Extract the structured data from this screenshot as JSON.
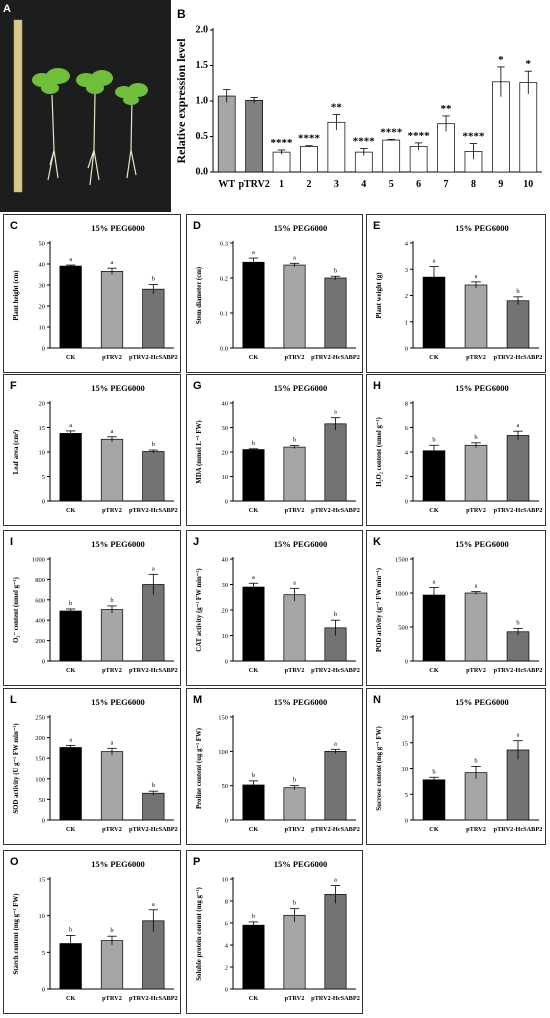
{
  "photo": {
    "label": "A"
  },
  "chart_data": [
    {
      "id": "B",
      "label": "B",
      "type": "bar",
      "ylabel": "Relative expression level",
      "categories": [
        "WT",
        "pTRV2",
        "1",
        "2",
        "3",
        "4",
        "5",
        "6",
        "7",
        "8",
        "9",
        "10"
      ],
      "values": [
        1.07,
        1.01,
        0.28,
        0.36,
        0.7,
        0.28,
        0.45,
        0.36,
        0.68,
        0.29,
        1.27,
        1.26
      ],
      "errors": [
        0.09,
        0.04,
        0.03,
        0.01,
        0.11,
        0.05,
        0.01,
        0.05,
        0.11,
        0.11,
        0.21,
        0.16
      ],
      "sig": [
        "",
        "",
        "****",
        "****",
        "**",
        "****",
        "****",
        "****",
        "**",
        "****",
        "*",
        "*"
      ],
      "colors": [
        "#a6a6a6",
        "#808080",
        "#ffffff",
        "#ffffff",
        "#ffffff",
        "#ffffff",
        "#ffffff",
        "#ffffff",
        "#ffffff",
        "#ffffff",
        "#ffffff",
        "#ffffff"
      ],
      "ylim": [
        0,
        2.0
      ],
      "yticks": [
        "0.0",
        "0.5",
        "1.0",
        "1.5",
        "2.0"
      ]
    },
    {
      "id": "C",
      "label": "C",
      "type": "bar",
      "title": "15% PEG6000",
      "ylabel": "Plant height (cm)",
      "categories": [
        "CK",
        "pTRV2",
        "pTRV2-HcSABP2"
      ],
      "values": [
        39,
        36.5,
        28
      ],
      "errors": [
        0.5,
        1.5,
        2.2
      ],
      "sig": [
        "a",
        "a",
        "b"
      ],
      "colors": [
        "#000000",
        "#a6a6a6",
        "#737373"
      ],
      "ylim": [
        0,
        50
      ],
      "yticks": [
        "0",
        "10",
        "20",
        "30",
        "40",
        "50"
      ]
    },
    {
      "id": "D",
      "label": "D",
      "type": "bar",
      "title": "15% PEG6000",
      "ylabel": "Stem diameter (cm)",
      "categories": [
        "CK",
        "pTRV2",
        "pTRV2-HcSABP2"
      ],
      "values": [
        0.245,
        0.237,
        0.2
      ],
      "errors": [
        0.012,
        0.005,
        0.005
      ],
      "sig": [
        "a",
        "a",
        "b"
      ],
      "colors": [
        "#000000",
        "#a6a6a6",
        "#737373"
      ],
      "ylim": [
        0,
        0.3
      ],
      "yticks": [
        "0.0",
        "0.1",
        "0.2",
        "0.3"
      ]
    },
    {
      "id": "E",
      "label": "E",
      "type": "bar",
      "title": "15% PEG6000",
      "ylabel": "Plant weight (g)",
      "categories": [
        "CK",
        "pTRV2",
        "pTRV2-HcSABP2"
      ],
      "values": [
        2.7,
        2.4,
        1.8
      ],
      "errors": [
        0.4,
        0.12,
        0.15
      ],
      "sig": [
        "a",
        "a",
        "b"
      ],
      "colors": [
        "#000000",
        "#a6a6a6",
        "#737373"
      ],
      "ylim": [
        0,
        4
      ],
      "yticks": [
        "0",
        "1",
        "2",
        "3",
        "4"
      ]
    },
    {
      "id": "F",
      "label": "F",
      "type": "bar",
      "title": "15% PEG6000",
      "ylabel": "Leaf area (cm²)",
      "categories": [
        "CK",
        "pTRV2",
        "pTRV2-HcSABP2"
      ],
      "values": [
        13.8,
        12.6,
        10.1
      ],
      "errors": [
        0.5,
        0.5,
        0.3
      ],
      "sig": [
        "a",
        "a",
        "b"
      ],
      "colors": [
        "#000000",
        "#a6a6a6",
        "#737373"
      ],
      "ylim": [
        0,
        20
      ],
      "yticks": [
        "0",
        "5",
        "10",
        "15",
        "20"
      ]
    },
    {
      "id": "G",
      "label": "G",
      "type": "bar",
      "title": "15% PEG6000",
      "ylabel": "MDA (mmol L⁻¹ FW)",
      "categories": [
        "CK",
        "pTRV2",
        "pTRV2-HcSABP2"
      ],
      "values": [
        21,
        22,
        31.5
      ],
      "errors": [
        0.3,
        0.6,
        2.5
      ],
      "sig": [
        "b",
        "b",
        "a"
      ],
      "colors": [
        "#000000",
        "#a6a6a6",
        "#737373"
      ],
      "ylim": [
        0,
        40
      ],
      "yticks": [
        "0",
        "10",
        "20",
        "30",
        "40"
      ]
    },
    {
      "id": "H",
      "label": "H",
      "type": "bar",
      "title": "15% PEG6000",
      "ylabel": "H₂O₂ content (umol g⁻¹)",
      "categories": [
        "CK",
        "pTRV2",
        "pTRV2-HcSABP2"
      ],
      "values": [
        4.1,
        4.55,
        5.35
      ],
      "errors": [
        0.45,
        0.2,
        0.35
      ],
      "sig": [
        "b",
        "b",
        "a"
      ],
      "colors": [
        "#000000",
        "#a6a6a6",
        "#737373"
      ],
      "ylim": [
        0,
        8
      ],
      "yticks": [
        "0",
        "2",
        "4",
        "6",
        "8"
      ]
    },
    {
      "id": "I",
      "label": "I",
      "type": "bar",
      "title": "15% PEG6000",
      "ylabel": "O₂⁻ content (nmol g⁻¹)",
      "categories": [
        "CK",
        "pTRV2",
        "pTRV2-HcSABP2"
      ],
      "values": [
        490,
        505,
        750
      ],
      "errors": [
        20,
        35,
        100
      ],
      "sig": [
        "b",
        "b",
        "a"
      ],
      "colors": [
        "#000000",
        "#a6a6a6",
        "#737373"
      ],
      "ylim": [
        0,
        1000
      ],
      "yticks": [
        "0",
        "200",
        "400",
        "600",
        "800",
        "1000"
      ]
    },
    {
      "id": "J",
      "label": "J",
      "type": "bar",
      "title": "15% PEG6000",
      "ylabel": "CAT activity (g⁻¹ FW min⁻¹)",
      "categories": [
        "CK",
        "pTRV2",
        "pTRV2-HcSABP2"
      ],
      "values": [
        29,
        26,
        13
      ],
      "errors": [
        1.5,
        2.5,
        3
      ],
      "sig": [
        "a",
        "a",
        "b"
      ],
      "colors": [
        "#000000",
        "#a6a6a6",
        "#737373"
      ],
      "ylim": [
        0,
        40
      ],
      "yticks": [
        "0",
        "10",
        "20",
        "30",
        "40"
      ]
    },
    {
      "id": "K",
      "label": "K",
      "type": "bar",
      "title": "15% PEG6000",
      "ylabel": "POD activity (g⁻¹ FW min⁻¹)",
      "categories": [
        "CK",
        "pTRV2",
        "pTRV2-HcSABP2"
      ],
      "values": [
        970,
        1000,
        430
      ],
      "errors": [
        110,
        20,
        50
      ],
      "sig": [
        "a",
        "a",
        "b"
      ],
      "colors": [
        "#000000",
        "#a6a6a6",
        "#737373"
      ],
      "ylim": [
        0,
        1500
      ],
      "yticks": [
        "0",
        "500",
        "1000",
        "1500"
      ]
    },
    {
      "id": "L",
      "label": "L",
      "type": "bar",
      "title": "15% PEG6000",
      "ylabel": "SOD activity (U g⁻¹ FW min⁻¹)",
      "categories": [
        "CK",
        "pTRV2",
        "pTRV2-HcSABP2"
      ],
      "values": [
        176,
        166,
        65
      ],
      "errors": [
        5,
        8,
        5
      ],
      "sig": [
        "a",
        "a",
        "b"
      ],
      "colors": [
        "#000000",
        "#a6a6a6",
        "#737373"
      ],
      "ylim": [
        0,
        250
      ],
      "yticks": [
        "0",
        "50",
        "100",
        "150",
        "200",
        "250"
      ]
    },
    {
      "id": "M",
      "label": "M",
      "type": "bar",
      "title": "15% PEG6000",
      "ylabel": "Proline content (ug g⁻¹ FW)",
      "categories": [
        "CK",
        "pTRV2",
        "pTRV2-HcSABP2"
      ],
      "values": [
        51,
        47,
        100
      ],
      "errors": [
        6,
        3,
        3
      ],
      "sig": [
        "b",
        "b",
        "a"
      ],
      "colors": [
        "#000000",
        "#a6a6a6",
        "#737373"
      ],
      "ylim": [
        0,
        150
      ],
      "yticks": [
        "0",
        "50",
        "100",
        "150"
      ]
    },
    {
      "id": "N",
      "label": "N",
      "type": "bar",
      "title": "15% PEG6000",
      "ylabel": "Sucrose content (mg g⁻¹ FW)",
      "categories": [
        "CK",
        "pTRV2",
        "pTRV2-HcSABP2"
      ],
      "values": [
        7.8,
        9.2,
        13.6
      ],
      "errors": [
        0.5,
        1.2,
        1.8
      ],
      "sig": [
        "b",
        "b",
        "a"
      ],
      "colors": [
        "#000000",
        "#a6a6a6",
        "#737373"
      ],
      "ylim": [
        0,
        20
      ],
      "yticks": [
        "0",
        "5",
        "10",
        "15",
        "20"
      ]
    },
    {
      "id": "O",
      "label": "O",
      "type": "bar",
      "title": "15% PEG6000",
      "ylabel": "Starch content (mg g⁻¹ FW)",
      "categories": [
        "CK",
        "pTRV2",
        "pTRV2-HcSABP2"
      ],
      "values": [
        6.2,
        6.6,
        9.3
      ],
      "errors": [
        1.1,
        0.6,
        1.5
      ],
      "sig": [
        "b",
        "b",
        "a"
      ],
      "colors": [
        "#000000",
        "#a6a6a6",
        "#737373"
      ],
      "ylim": [
        0,
        15
      ],
      "yticks": [
        "0",
        "5",
        "10",
        "15"
      ]
    },
    {
      "id": "P",
      "label": "P",
      "type": "bar",
      "title": "15% PEG6000",
      "ylabel": "Soluble protein content (mg g⁻¹)",
      "categories": [
        "CK",
        "pTRV2",
        "pTRV2-HcSABP2"
      ],
      "values": [
        5.8,
        6.7,
        8.6
      ],
      "errors": [
        0.3,
        0.6,
        0.8
      ],
      "sig": [
        "b",
        "b",
        "a"
      ],
      "colors": [
        "#000000",
        "#a6a6a6",
        "#737373"
      ],
      "ylim": [
        0,
        10
      ],
      "yticks": [
        "0",
        "2",
        "4",
        "6",
        "8",
        "10"
      ]
    }
  ]
}
